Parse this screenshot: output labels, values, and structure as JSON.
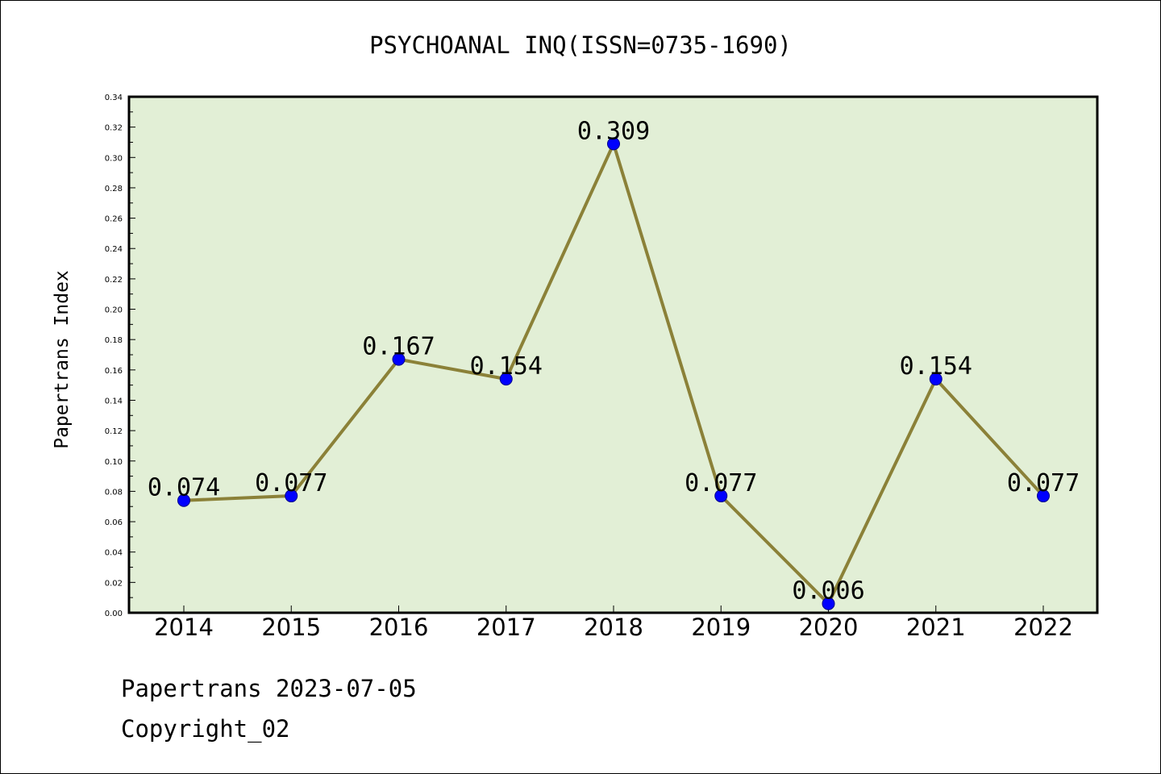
{
  "chart_data": {
    "type": "line",
    "title": "PSYCHOANAL INQ(ISSN=0735-1690)",
    "xlabel": "",
    "ylabel": "Papertrans Index",
    "categories": [
      "2014",
      "2015",
      "2016",
      "2017",
      "2018",
      "2019",
      "2020",
      "2021",
      "2022"
    ],
    "values": [
      0.074,
      0.077,
      0.167,
      0.154,
      0.309,
      0.077,
      0.006,
      0.154,
      0.077
    ],
    "data_labels": [
      "0.074",
      "0.077",
      "0.167",
      "0.154",
      "0.309",
      "0.077",
      "0.006",
      "0.154",
      "0.077"
    ],
    "ylim": [
      0,
      0.34
    ],
    "yticks": [
      "0.00",
      "0.02",
      "0.04",
      "0.06",
      "0.08",
      "0.10",
      "0.12",
      "0.14",
      "0.16",
      "0.18",
      "0.20",
      "0.22",
      "0.24",
      "0.26",
      "0.28",
      "0.30",
      "0.32",
      "0.34"
    ],
    "grid": false,
    "colors": {
      "plot_background": "#e2efd6",
      "line": "#8b8138",
      "marker": "#0000ff"
    }
  },
  "footer": {
    "line1": "Papertrans 2023-07-05",
    "line2": "Copyright_02"
  }
}
